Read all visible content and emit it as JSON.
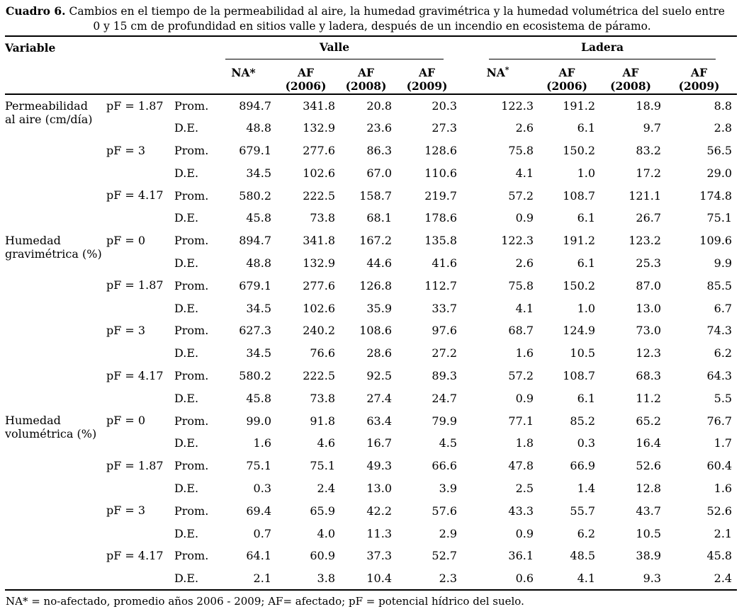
{
  "caption": {
    "label": "Cuadro 6.",
    "line1": "Cambios en el tiempo de la permeabilidad al aire, la humedad gravimétrica y la humedad volumétrica del suelo entre",
    "line2": "0 y 15 cm de profundidad en sitios valle y ladera, después de un incendio en ecosistema de páramo."
  },
  "header": {
    "variable_label": "Variable",
    "site_groups": [
      {
        "label": "Valle"
      },
      {
        "label": "Ladera"
      }
    ],
    "col_labels": [
      {
        "top": "NA*",
        "bottom": ""
      },
      {
        "top": "AF",
        "bottom": "(2006)"
      },
      {
        "top": "AF",
        "bottom": "(2008)"
      },
      {
        "top": "AF",
        "bottom": "(2009)"
      },
      {
        "top": "NA",
        "sup": "*",
        "bottom": ""
      },
      {
        "top": "AF",
        "bottom": "(2006)"
      },
      {
        "top": "AF",
        "bottom": "(2008)"
      },
      {
        "top": "AF",
        "bottom": "(2009)"
      }
    ]
  },
  "sections": [
    {
      "name": [
        "Permeabilidad",
        "al aire (cm/día)"
      ],
      "groups": [
        {
          "pf": "pF = 1.87",
          "rows": [
            {
              "stat": "Prom.",
              "values": [
                "894.7",
                "341.8",
                "20.8",
                "20.3",
                "122.3",
                "191.2",
                "18.9",
                "8.8"
              ]
            },
            {
              "stat": "D.E.",
              "values": [
                "48.8",
                "132.9",
                "23.6",
                "27.3",
                "2.6",
                "6.1",
                "9.7",
                "2.8"
              ]
            }
          ]
        },
        {
          "pf": "pF = 3",
          "rows": [
            {
              "stat": "Prom.",
              "values": [
                "679.1",
                "277.6",
                "86.3",
                "128.6",
                "75.8",
                "150.2",
                "83.2",
                "56.5"
              ]
            },
            {
              "stat": "D.E.",
              "values": [
                "34.5",
                "102.6",
                "67.0",
                "110.6",
                "4.1",
                "1.0",
                "17.2",
                "29.0"
              ]
            }
          ]
        },
        {
          "pf": "pF = 4.17",
          "rows": [
            {
              "stat": "Prom.",
              "values": [
                "580.2",
                "222.5",
                "158.7",
                "219.7",
                "57.2",
                "108.7",
                "121.1",
                "174.8"
              ]
            },
            {
              "stat": "D.E.",
              "values": [
                "45.8",
                "73.8",
                "68.1",
                "178.6",
                "0.9",
                "6.1",
                "26.7",
                "75.1"
              ]
            }
          ]
        }
      ]
    },
    {
      "name": [
        "Humedad",
        "gravimétrica (%)"
      ],
      "groups": [
        {
          "pf": "pF = 0",
          "rows": [
            {
              "stat": "Prom.",
              "values": [
                "894.7",
                "341.8",
                "167.2",
                "135.8",
                "122.3",
                "191.2",
                "123.2",
                "109.6"
              ]
            },
            {
              "stat": "D.E.",
              "values": [
                "48.8",
                "132.9",
                "44.6",
                "41.6",
                "2.6",
                "6.1",
                "25.3",
                "9.9"
              ]
            }
          ]
        },
        {
          "pf": "pF = 1.87",
          "rows": [
            {
              "stat": "Prom.",
              "values": [
                "679.1",
                "277.6",
                "126.8",
                "112.7",
                "75.8",
                "150.2",
                "87.0",
                "85.5"
              ]
            },
            {
              "stat": "D.E.",
              "values": [
                "34.5",
                "102.6",
                "35.9",
                "33.7",
                "4.1",
                "1.0",
                "13.0",
                "6.7"
              ]
            }
          ]
        },
        {
          "pf": "pF = 3",
          "rows": [
            {
              "stat": "Prom.",
              "values": [
                "627.3",
                "240.2",
                "108.6",
                "97.6",
                "68.7",
                "124.9",
                "73.0",
                "74.3"
              ]
            },
            {
              "stat": "D.E.",
              "values": [
                "34.5",
                "76.6",
                "28.6",
                "27.2",
                "1.6",
                "10.5",
                "12.3",
                "6.2"
              ]
            }
          ]
        },
        {
          "pf": "pF = 4.17",
          "rows": [
            {
              "stat": "Prom.",
              "values": [
                "580.2",
                "222.5",
                "92.5",
                "89.3",
                "57.2",
                "108.7",
                "68.3",
                "64.3"
              ]
            },
            {
              "stat": "D.E.",
              "values": [
                "45.8",
                "73.8",
                "27.4",
                "24.7",
                "0.9",
                "6.1",
                "11.2",
                "5.5"
              ]
            }
          ]
        }
      ]
    },
    {
      "name": [
        "Humedad",
        "volumétrica (%)"
      ],
      "groups": [
        {
          "pf": "pF = 0",
          "rows": [
            {
              "stat": "Prom.",
              "values": [
                "99.0",
                "91.8",
                "63.4",
                "79.9",
                "77.1",
                "85.2",
                "65.2",
                "76.7"
              ]
            },
            {
              "stat": "D.E.",
              "values": [
                "1.6",
                "4.6",
                "16.7",
                "4.5",
                "1.8",
                "0.3",
                "16.4",
                "1.7"
              ]
            }
          ]
        },
        {
          "pf": "pF = 1.87",
          "rows": [
            {
              "stat": "Prom.",
              "values": [
                "75.1",
                "75.1",
                "49.3",
                "66.6",
                "47.8",
                "66.9",
                "52.6",
                "60.4"
              ]
            },
            {
              "stat": "D.E.",
              "values": [
                "0.3",
                "2.4",
                "13.0",
                "3.9",
                "2.5",
                "1.4",
                "12.8",
                "1.6"
              ]
            }
          ]
        },
        {
          "pf": "pF = 3",
          "rows": [
            {
              "stat": "Prom.",
              "values": [
                "69.4",
                "65.9",
                "42.2",
                "57.6",
                "43.3",
                "55.7",
                "43.7",
                "52.6"
              ]
            },
            {
              "stat": "D.E.",
              "values": [
                "0.7",
                "4.0",
                "11.3",
                "2.9",
                "0.9",
                "6.2",
                "10.5",
                "2.1"
              ]
            }
          ]
        },
        {
          "pf": "pF = 4.17",
          "rows": [
            {
              "stat": "Prom.",
              "values": [
                "64.1",
                "60.9",
                "37.3",
                "52.7",
                "36.1",
                "48.5",
                "38.9",
                "45.8"
              ]
            },
            {
              "stat": "D.E.",
              "values": [
                "2.1",
                "3.8",
                "10.4",
                "2.3",
                "0.6",
                "4.1",
                "9.3",
                "2.4"
              ]
            }
          ]
        }
      ]
    }
  ],
  "footnote": "NA* = no-afectado, promedio años 2006 - 2009; AF= afectado; pF = potencial hídrico del suelo.",
  "colors": {
    "text": "#000000",
    "background": "#ffffff",
    "rule": "#000000"
  }
}
